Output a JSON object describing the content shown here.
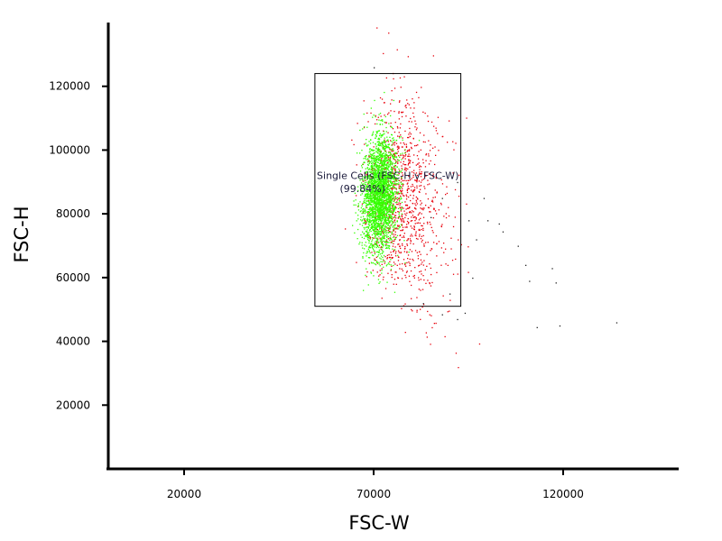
{
  "chart_data": {
    "type": "scatter",
    "title": "",
    "xlabel": "FSC-W",
    "ylabel": "FSC-H",
    "xlim": [
      0,
      150000
    ],
    "ylim": [
      0,
      140000
    ],
    "xticks": [
      20000,
      70000,
      120000
    ],
    "yticks": [
      20000,
      40000,
      60000,
      80000,
      100000,
      120000
    ],
    "xtick_labels": [
      "20000",
      "70000",
      "120000"
    ],
    "ytick_labels": [
      "20000",
      "40000",
      "60000",
      "80000",
      "100000",
      "120000"
    ],
    "grid": false,
    "legend": "none",
    "series": [
      {
        "color": "#33ff00",
        "description": "dense population inside gate",
        "center": [
          71500,
          86000
        ],
        "spread": [
          2300,
          9000
        ],
        "count": 2600
      },
      {
        "color": "#e8000b",
        "description": "sparse population around dense core",
        "center": [
          74000,
          84000
        ],
        "spread": [
          7000,
          16000
        ],
        "count": 1100
      }
    ],
    "outliers": [
      [
        85000,
        79000
      ],
      [
        88000,
        85000
      ],
      [
        92000,
        90000
      ],
      [
        95000,
        78000
      ],
      [
        97000,
        72000
      ],
      [
        100000,
        78000
      ],
      [
        103000,
        77000
      ],
      [
        104000,
        74500
      ],
      [
        108000,
        70000
      ],
      [
        110000,
        64000
      ],
      [
        117000,
        63000
      ],
      [
        118000,
        58500
      ],
      [
        111000,
        59000
      ],
      [
        119000,
        45000
      ],
      [
        134000,
        46000
      ],
      [
        113000,
        44500
      ],
      [
        94000,
        49000
      ],
      [
        92000,
        47000
      ],
      [
        88000,
        48500
      ],
      [
        90000,
        55000
      ],
      [
        83000,
        52000
      ],
      [
        70000,
        126000
      ],
      [
        99000,
        85000
      ],
      [
        96000,
        60000
      ]
    ],
    "gate": {
      "label": "Single Cells (FSC-H v FSC-W)",
      "percent_label": "(99.84%)",
      "x_range": [
        54500,
        93000
      ],
      "y_range": [
        51000,
        124000
      ]
    }
  }
}
